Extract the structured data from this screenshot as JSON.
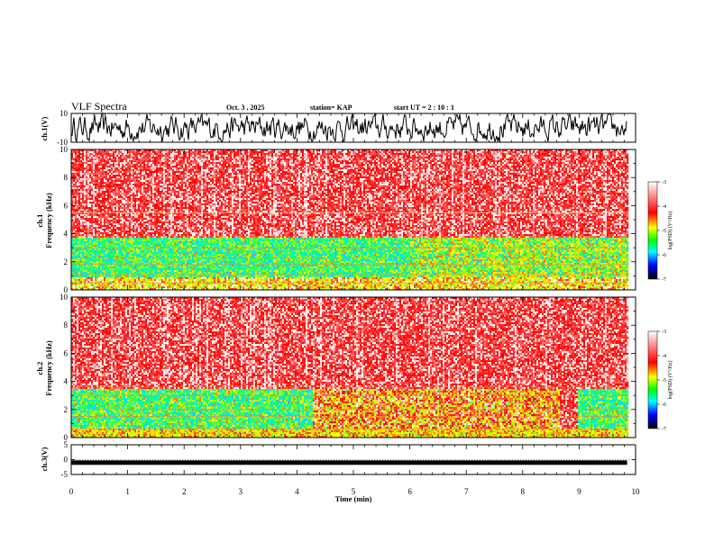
{
  "chart_data": {
    "type": "heatmap",
    "title": "VLF Spectra",
    "date": "Oct. 3 , 2025",
    "station": "station= KAP",
    "start_ut": "start UT =   2 : 10 : 1",
    "xlabel": "Time (min)",
    "xlim": [
      0,
      10
    ],
    "xticks": [
      0,
      1,
      2,
      3,
      4,
      5,
      6,
      7,
      8,
      9,
      10
    ],
    "data_end_min": 9.85,
    "waveform_ch1": {
      "ylabel": "ch.1(V)",
      "ylim": [
        -10,
        10
      ],
      "ytick_labels": [
        "10",
        "-10"
      ],
      "description_range": [
        -10,
        10
      ]
    },
    "spectrogram_ch1": {
      "ylabel_line1": "ch.1",
      "ylabel_line2": "Frequency (kHz)",
      "ylim": [
        0,
        10
      ],
      "yticks": [
        0,
        2,
        4,
        6,
        8,
        10
      ],
      "bands": [
        {
          "from_khz": 0.0,
          "to_khz": 0.9,
          "level": "mixed"
        },
        {
          "from_khz": 0.9,
          "to_khz": 3.7,
          "level": -5.3
        },
        {
          "from_khz": 3.7,
          "to_khz": 10.0,
          "level": -3.6
        }
      ]
    },
    "spectrogram_ch2": {
      "ylabel_line1": "ch.2",
      "ylabel_line2": "Frequency (kHz)",
      "ylim": [
        0,
        10
      ],
      "yticks": [
        0,
        2,
        4,
        6,
        8,
        10
      ],
      "low_band_quiet_until_min": 4.25,
      "gap_min": [
        8.65,
        8.95
      ]
    },
    "waveform_ch3": {
      "ylabel": "ch.3(V)",
      "ylim": [
        -5,
        5
      ],
      "ytick_labels": [
        "5",
        "0",
        "-5"
      ],
      "level": -1.0
    },
    "colorbar": {
      "label": "log(PSD) (V²/Hz)",
      "range": [
        -7,
        -3
      ],
      "tick_labels": [
        "-3",
        "-4",
        "-5",
        "-6",
        "-7"
      ],
      "colors": [
        "#ffffff",
        "#ff0000",
        "#ffff00",
        "#00ff00",
        "#00ffff",
        "#0000ff",
        "#000000"
      ]
    }
  }
}
